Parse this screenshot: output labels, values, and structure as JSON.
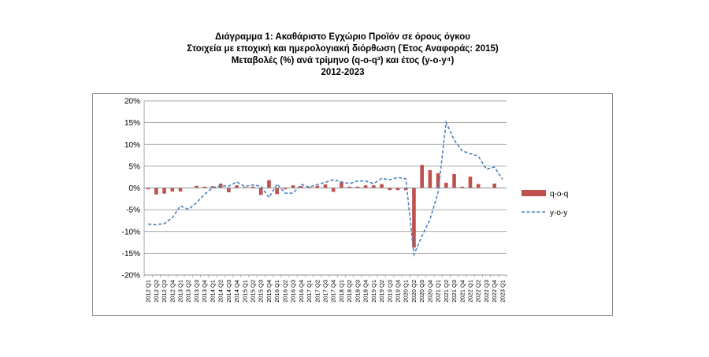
{
  "titles": {
    "line1": "Διάγραμμα 1: Ακαθάριστο Εγχώριο Προϊόν σε όρους όγκου",
    "line2": "Στοιχεία με εποχική και ημερολογιακή διόρθωση (Έτος Αναφοράς: 2015)",
    "line3": "Μεταβολές (%) ανά τρίμηνο (q-o-q³) και έτος (y-o-y⁴)",
    "line4": "2012-2023"
  },
  "chart_data": {
    "type": "bar",
    "ylim": [
      -20,
      20
    ],
    "yticks": [
      "20%",
      "15%",
      "10%",
      "5%",
      "0%",
      "-5%",
      "-10%",
      "-15%",
      "-20%"
    ],
    "ytick_values": [
      20,
      15,
      10,
      5,
      0,
      -5,
      -10,
      -15,
      -20
    ],
    "grid": true,
    "legend_position": "right",
    "categories": [
      "2012 Q1",
      "2012 Q2",
      "2012 Q3",
      "2012 Q4",
      "2013 Q1",
      "2013 Q2",
      "2013 Q3",
      "2013 Q4",
      "2014 Q1",
      "2014 Q2",
      "2014 Q3",
      "2014 Q4",
      "2015 Q1",
      "2015 Q2",
      "2015 Q3",
      "2015 Q4",
      "2016 Q1",
      "2016 Q2",
      "2016 Q3",
      "2016 Q4",
      "2017 Q1",
      "2017 Q2",
      "2017 Q3",
      "2017 Q4",
      "2018 Q1",
      "2018 Q2",
      "2018 Q3",
      "2018 Q4",
      "2019 Q1",
      "2019 Q2",
      "2019 Q3",
      "2019 Q4",
      "2020 Q1",
      "2020 Q2",
      "2020 Q3",
      "2020 Q4",
      "2021 Q1",
      "2021 Q2",
      "2021 Q3",
      "2021 Q4",
      "2022 Q1",
      "2022 Q2",
      "2022 Q3",
      "2022 Q4",
      "2023 Q1"
    ],
    "series": [
      {
        "name": "q-o-q",
        "kind": "bar",
        "color": "#c0504d",
        "values": [
          -0.3,
          -1.5,
          -1.3,
          -0.8,
          -0.8,
          0.1,
          0.5,
          0.3,
          0.4,
          1.0,
          -1.0,
          0.6,
          0.2,
          0.3,
          -1.6,
          1.8,
          -1.4,
          -0.3,
          0.6,
          0.4,
          0.2,
          0.5,
          0.8,
          -0.9,
          1.3,
          0.3,
          0.3,
          0.6,
          0.6,
          0.9,
          -0.5,
          -0.5,
          -0.5,
          -13.7,
          5.3,
          4.1,
          3.4,
          1.2,
          3.2,
          0.3,
          2.6,
          0.9,
          0.1,
          1.0,
          0.0
        ]
      },
      {
        "name": "y-o-y",
        "kind": "line",
        "color": "#4f81bd",
        "dashed": true,
        "values": [
          -8.3,
          -8.4,
          -8.2,
          -6.8,
          -4.1,
          -4.9,
          -3.4,
          -1.4,
          0.0,
          0.5,
          0.4,
          1.4,
          0.3,
          0.7,
          0.4,
          -2.2,
          0.9,
          -1.2,
          -1.2,
          0.8,
          0.2,
          0.8,
          1.3,
          1.9,
          1.4,
          1.0,
          1.6,
          1.6,
          1.0,
          2.2,
          1.9,
          2.4,
          2.1,
          -15.3,
          -11.0,
          -7.2,
          -1.0,
          15.1,
          11.0,
          8.5,
          7.9,
          7.3,
          4.3,
          4.8,
          2.0
        ]
      }
    ]
  }
}
